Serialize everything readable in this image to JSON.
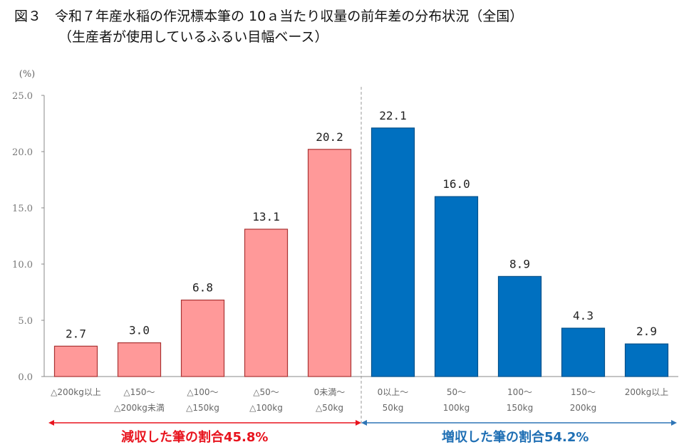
{
  "chart_data": {
    "type": "bar",
    "title": "図３　令和７年産水稲の作況標本筆の 10ａ当たり収量の前年差の分布状況（全国）",
    "subtitle": "（生産者が使用しているふるい目幅ベース）",
    "ylabel": "(%)",
    "ylim": [
      0,
      25
    ],
    "yticks": [
      "0.0",
      "5.0",
      "10.0",
      "15.0",
      "20.0",
      "25.0"
    ],
    "grid": false,
    "categories": [
      [
        "△200kg以上",
        ""
      ],
      [
        "△150～",
        "△200kg未満"
      ],
      [
        "△100～",
        "△150kg"
      ],
      [
        "△50～",
        "△100kg"
      ],
      [
        "0未満～",
        "△50kg"
      ],
      [
        "0以上～",
        "50kg"
      ],
      [
        "50～",
        "100kg"
      ],
      [
        "100～",
        "150kg"
      ],
      [
        "150～",
        "200kg"
      ],
      [
        "200kg以上",
        ""
      ]
    ],
    "values": [
      2.7,
      3.0,
      6.8,
      13.1,
      20.2,
      22.1,
      16.0,
      8.9,
      4.3,
      2.9
    ],
    "data_labels": [
      "2.7",
      "3.0",
      "6.8",
      "13.1",
      "20.2",
      "22.1",
      "16.0",
      "8.9",
      "4.3",
      "2.9"
    ],
    "groups": [
      {
        "label": "減収した筆の割合45.8%",
        "color": "#FF9999",
        "text_color": "#E8141E",
        "arrow_color": "#E8141E",
        "bar_indices": [
          0,
          1,
          2,
          3,
          4
        ]
      },
      {
        "label": "増収した筆の割合54.2%",
        "color": "#0070C0",
        "text_color": "#1F6FB4",
        "arrow_color": "#2E75B6",
        "bar_indices": [
          5,
          6,
          7,
          8,
          9
        ]
      }
    ]
  }
}
